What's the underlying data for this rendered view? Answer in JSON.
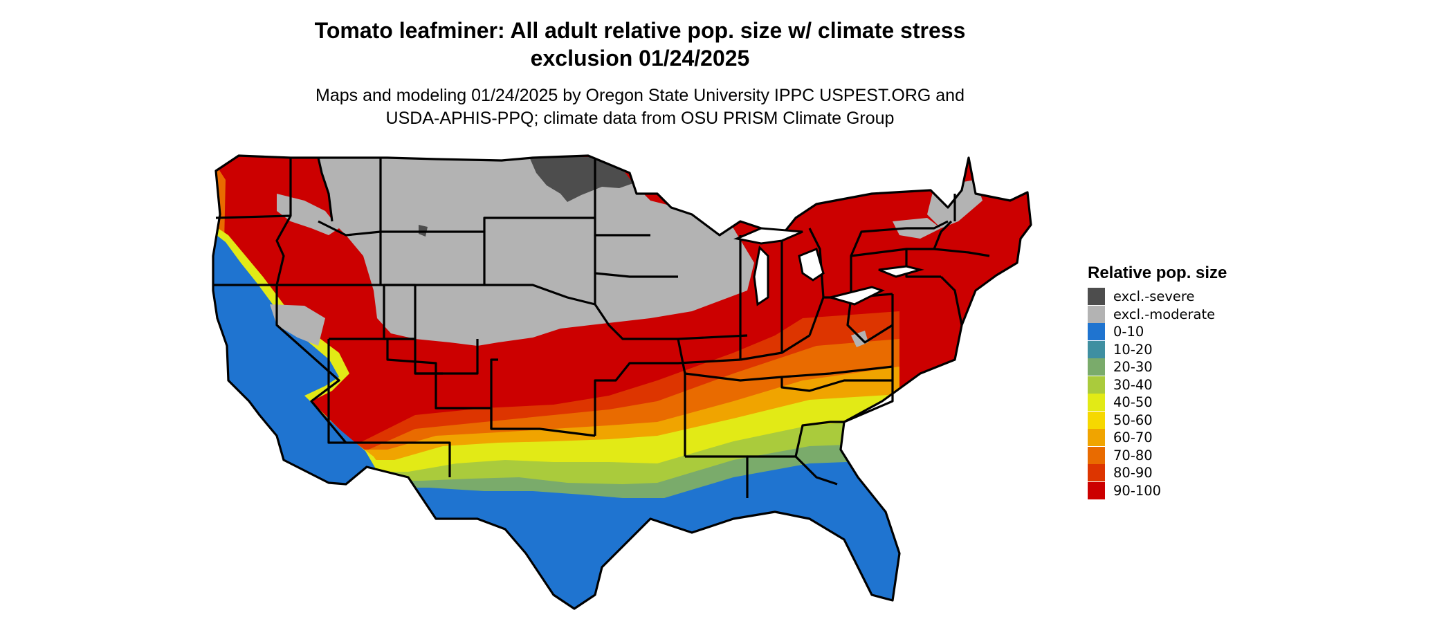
{
  "header": {
    "title_line1": "Tomato leafminer: All adult relative pop. size w/ climate stress",
    "title_line2": "exclusion 01/24/2025",
    "subtitle_line1": "Maps and modeling 01/24/2025 by Oregon State University IPPC USPEST.ORG and",
    "subtitle_line2": "USDA-APHIS-PPQ; climate data from OSU PRISM Climate Group"
  },
  "legend": {
    "title": "Relative pop. size",
    "items": [
      {
        "label": "excl.-severe",
        "color": "#4d4d4d"
      },
      {
        "label": "excl.-moderate",
        "color": "#b3b3b3"
      },
      {
        "label": "0-10",
        "color": "#1f74d0"
      },
      {
        "label": "10-20",
        "color": "#3f8fa1"
      },
      {
        "label": "20-30",
        "color": "#7aab6b"
      },
      {
        "label": "30-40",
        "color": "#aacb3c"
      },
      {
        "label": "40-50",
        "color": "#e2ea16"
      },
      {
        "label": "50-60",
        "color": "#f6d800"
      },
      {
        "label": "60-70",
        "color": "#f0a400"
      },
      {
        "label": "70-80",
        "color": "#e96b00"
      },
      {
        "label": "80-90",
        "color": "#dd3500"
      },
      {
        "label": "90-100",
        "color": "#cc0000"
      }
    ]
  }
}
